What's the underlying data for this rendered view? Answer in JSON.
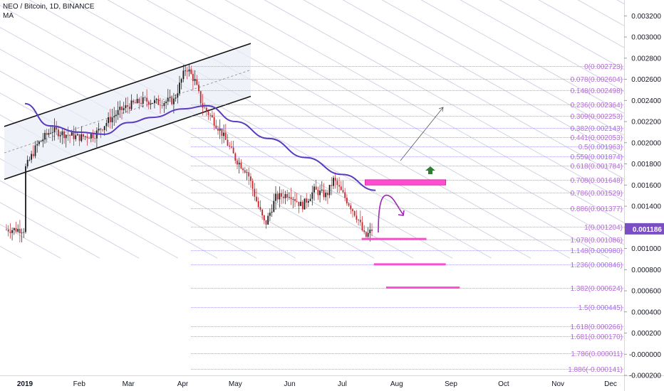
{
  "header": {
    "title": "NEO / Bitcoin, 1D, BINANCE",
    "indicator": "MA"
  },
  "price_tag": {
    "text": "0.001186",
    "value": 0.001186,
    "color": "#7b4fc3"
  },
  "colors": {
    "fib": "#b56bdb",
    "fib_line": "#8e86e8",
    "channel": "#111111",
    "ma": "#5b3bbd",
    "candle": "#c2272d",
    "arrow": "#9c27b0",
    "zone": "#ff4dd2",
    "up_arrow": "#2e7d32",
    "diag": "#c8c8e0"
  },
  "chart_data": {
    "type": "candlestick",
    "symbol": "NEO / Bitcoin",
    "interval": "1D",
    "exchange": "BINANCE",
    "indicators": [
      "MA"
    ],
    "y_axis": {
      "ylim": [
        -0.0002,
        0.00335
      ],
      "ticks": [
        {
          "value": 0.0032,
          "label": "0.003200"
        },
        {
          "value": 0.003,
          "label": "0.003000"
        },
        {
          "value": 0.0028,
          "label": "0.002800"
        },
        {
          "value": 0.0026,
          "label": "0.002600"
        },
        {
          "value": 0.0024,
          "label": "0.002400"
        },
        {
          "value": 0.0022,
          "label": "0.002200"
        },
        {
          "value": 0.002,
          "label": "0.002000"
        },
        {
          "value": 0.0018,
          "label": "0.001800"
        },
        {
          "value": 0.0016,
          "label": "0.001600"
        },
        {
          "value": 0.0014,
          "label": "0.001400"
        },
        {
          "value": 0.0012,
          "label": "0.001200"
        },
        {
          "value": 0.001,
          "label": "0.001000"
        },
        {
          "value": 0.0008,
          "label": "0.000800"
        },
        {
          "value": 0.0006,
          "label": "0.000600"
        },
        {
          "value": 0.0004,
          "label": "0.000400"
        },
        {
          "value": 0.0002,
          "label": "0.000200"
        },
        {
          "value": 0.0,
          "label": "-0.000000"
        },
        {
          "value": -0.0002,
          "label": "-0.000200"
        }
      ]
    },
    "x_axis": {
      "labels": [
        {
          "label": "2019",
          "date": "2019-01-01"
        },
        {
          "label": "Feb",
          "date": "2019-02-01"
        },
        {
          "label": "Mar",
          "date": "2019-03-01"
        },
        {
          "label": "Apr",
          "date": "2019-04-01"
        },
        {
          "label": "May",
          "date": "2019-05-01"
        },
        {
          "label": "Jun",
          "date": "2019-06-01"
        },
        {
          "label": "Jul",
          "date": "2019-07-01"
        },
        {
          "label": "Aug",
          "date": "2019-08-01"
        },
        {
          "label": "Sep",
          "date": "2019-09-01"
        },
        {
          "label": "Oct",
          "date": "2019-10-01"
        },
        {
          "label": "Nov",
          "date": "2019-11-01"
        },
        {
          "label": "Dec",
          "date": "2019-12-01"
        }
      ]
    },
    "fibonacci": [
      {
        "level": "0",
        "price": 0.002723,
        "label": "0(0.002723)"
      },
      {
        "level": "0.078",
        "price": 0.002604,
        "label": "0.078(0.002604)"
      },
      {
        "level": "0.148",
        "price": 0.002498,
        "label": "0.148(0.002498)"
      },
      {
        "level": "0.236",
        "price": 0.002364,
        "label": "0.236(0.002364)"
      },
      {
        "level": "0.309",
        "price": 0.002253,
        "label": "0.309(0.002253)"
      },
      {
        "level": "0.382",
        "price": 0.002143,
        "label": "0.382(0.002143)"
      },
      {
        "level": "0.441",
        "price": 0.002053,
        "label": "0.441(0.002053)"
      },
      {
        "level": "0.5",
        "price": 0.001963,
        "label": "0.5(0.001963)"
      },
      {
        "level": "0.559",
        "price": 0.001874,
        "label": "0.559(0.001874)"
      },
      {
        "level": "0.618",
        "price": 0.001784,
        "label": "0.618(0.001784)"
      },
      {
        "level": "0.708",
        "price": 0.001648,
        "label": "0.708(0.001648)"
      },
      {
        "level": "0.786",
        "price": 0.001529,
        "label": "0.786(0.001529)"
      },
      {
        "level": "0.886",
        "price": 0.001377,
        "label": "0.886(0.001377)"
      },
      {
        "level": "1",
        "price": 0.001204,
        "label": "1(0.001204)"
      },
      {
        "level": "1.078",
        "price": 0.001086,
        "label": "1.078(0.001086)"
      },
      {
        "level": "1.148",
        "price": 0.00098,
        "label": "1.148(0.000980)"
      },
      {
        "level": "1.236",
        "price": 0.000846,
        "label": "1.236(0.000846)"
      },
      {
        "level": "1.382",
        "price": 0.000624,
        "label": "1.382(0.000624)"
      },
      {
        "level": "1.5",
        "price": 0.000445,
        "label": "1.5(0.000445)"
      },
      {
        "level": "1.618",
        "price": 0.000266,
        "label": "1.618(0.000266)"
      },
      {
        "level": "1.681",
        "price": 0.00017,
        "label": "1.681(0.000170)"
      },
      {
        "level": "1.786",
        "price": 1.1e-05,
        "label": "1.786(0.000011)"
      },
      {
        "level": "1.886",
        "price": -0.000141,
        "label": "1.886(-0.000141)"
      }
    ],
    "last_price": 0.001186,
    "zones": [
      {
        "price_top": 0.00165,
        "price_bottom": 0.0016,
        "start": "2019-07-14",
        "end": "2019-08-29"
      },
      {
        "price": 0.00109,
        "start": "2019-07-12",
        "end": "2019-08-18"
      },
      {
        "price": 0.00085,
        "start": "2019-07-19",
        "end": "2019-08-29"
      },
      {
        "price": 0.00063,
        "start": "2019-07-26",
        "end": "2019-09-06"
      }
    ],
    "channel": {
      "upper": [
        {
          "date": "2019-01-01",
          "price": 0.00222
        },
        {
          "date": "2019-05-01",
          "price": 0.00289
        }
      ],
      "lower": [
        {
          "date": "2019-01-01",
          "price": 0.00172
        },
        {
          "date": "2019-05-01",
          "price": 0.00239
        }
      ]
    },
    "ma_path": [
      {
        "date": "2019-01-01",
        "price": 0.00237
      },
      {
        "date": "2019-01-15",
        "price": 0.00216
      },
      {
        "date": "2019-02-01",
        "price": 0.0021
      },
      {
        "date": "2019-02-15",
        "price": 0.00208
      },
      {
        "date": "2019-03-01",
        "price": 0.00219
      },
      {
        "date": "2019-03-15",
        "price": 0.00224
      },
      {
        "date": "2019-04-01",
        "price": 0.00232
      },
      {
        "date": "2019-04-15",
        "price": 0.00235
      },
      {
        "date": "2019-05-01",
        "price": 0.0022
      },
      {
        "date": "2019-05-20",
        "price": 0.00204
      },
      {
        "date": "2019-06-10",
        "price": 0.00186
      },
      {
        "date": "2019-07-01",
        "price": 0.0017
      },
      {
        "date": "2019-07-20",
        "price": 0.00155
      }
    ],
    "price_path": [
      {
        "date": "2019-01-01",
        "price": 0.00175
      },
      {
        "date": "2019-01-08",
        "price": 0.00198
      },
      {
        "date": "2019-01-16",
        "price": 0.00212
      },
      {
        "date": "2019-01-24",
        "price": 0.00208
      },
      {
        "date": "2019-02-01",
        "price": 0.00205
      },
      {
        "date": "2019-02-10",
        "price": 0.00208
      },
      {
        "date": "2019-02-17",
        "price": 0.0022
      },
      {
        "date": "2019-02-24",
        "price": 0.0023
      },
      {
        "date": "2019-03-01",
        "price": 0.00235
      },
      {
        "date": "2019-03-10",
        "price": 0.0024
      },
      {
        "date": "2019-03-18",
        "price": 0.00238
      },
      {
        "date": "2019-03-27",
        "price": 0.0024
      },
      {
        "date": "2019-04-03",
        "price": 0.00272
      },
      {
        "date": "2019-04-08",
        "price": 0.00258
      },
      {
        "date": "2019-04-12",
        "price": 0.00235
      },
      {
        "date": "2019-04-17",
        "price": 0.00225
      },
      {
        "date": "2019-04-23",
        "price": 0.0021
      },
      {
        "date": "2019-05-01",
        "price": 0.00185
      },
      {
        "date": "2019-05-08",
        "price": 0.00172
      },
      {
        "date": "2019-05-14",
        "price": 0.0014
      },
      {
        "date": "2019-05-18",
        "price": 0.00122
      },
      {
        "date": "2019-05-24",
        "price": 0.00148
      },
      {
        "date": "2019-06-01",
        "price": 0.00152
      },
      {
        "date": "2019-06-08",
        "price": 0.0014
      },
      {
        "date": "2019-06-15",
        "price": 0.00155
      },
      {
        "date": "2019-06-22",
        "price": 0.0015
      },
      {
        "date": "2019-06-26",
        "price": 0.00165
      },
      {
        "date": "2019-07-01",
        "price": 0.00152
      },
      {
        "date": "2019-07-05",
        "price": 0.00142
      },
      {
        "date": "2019-07-10",
        "price": 0.00128
      },
      {
        "date": "2019-07-14",
        "price": 0.0011
      },
      {
        "date": "2019-07-18",
        "price": 0.00118
      }
    ]
  }
}
